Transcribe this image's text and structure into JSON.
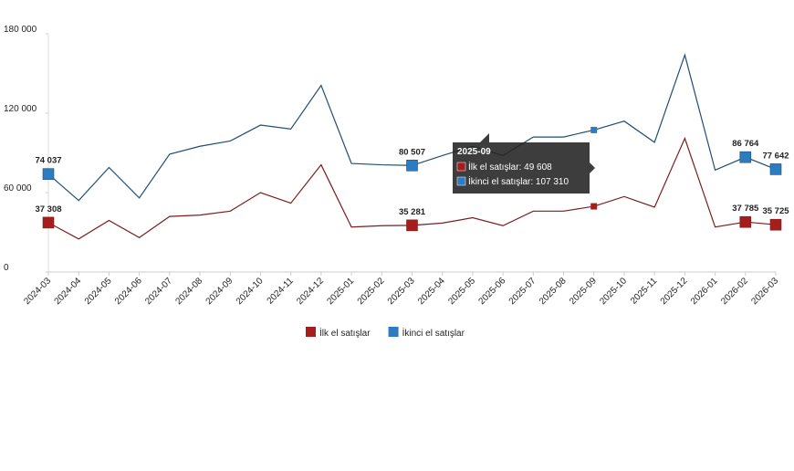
{
  "chart_data": {
    "type": "line",
    "categories": [
      "2024-03",
      "2024-04",
      "2024-05",
      "2024-06",
      "2024-07",
      "2024-08",
      "2024-09",
      "2024-10",
      "2024-11",
      "2024-12",
      "2025-01",
      "2025-02",
      "2025-03",
      "2025-04",
      "2025-05",
      "2025-06",
      "2025-07",
      "2025-08",
      "2025-09",
      "2025-10",
      "2025-11",
      "2025-12",
      "2026-01",
      "2026-02",
      "2026-03"
    ],
    "series": [
      {
        "name": "İlk el satışlar",
        "color": "#a51d1d",
        "line_color": "#7a1e1e",
        "values": [
          37308,
          25000,
          39000,
          26000,
          42000,
          43000,
          46000,
          60000,
          52000,
          81000,
          34000,
          35000,
          35281,
          37000,
          41000,
          35000,
          46000,
          46000,
          49608,
          57000,
          49000,
          101000,
          34000,
          37785,
          35725
        ],
        "value_labels": [
          "37 308",
          null,
          null,
          null,
          null,
          null,
          null,
          null,
          null,
          null,
          null,
          null,
          "35 281",
          null,
          null,
          null,
          null,
          null,
          null,
          null,
          null,
          null,
          null,
          "37 785",
          "35 725"
        ]
      },
      {
        "name": "İkinci el satışlar",
        "color": "#2d7bc0",
        "line_color": "#1f4f73",
        "values": [
          74037,
          54000,
          79000,
          56000,
          89000,
          95000,
          99000,
          111000,
          108000,
          141000,
          82000,
          81000,
          80507,
          88000,
          95000,
          88000,
          102000,
          102000,
          107310,
          114000,
          98000,
          164000,
          77000,
          86764,
          77642
        ],
        "value_labels": [
          "74 037",
          null,
          null,
          null,
          null,
          null,
          null,
          null,
          null,
          null,
          null,
          null,
          "80 507",
          null,
          null,
          null,
          null,
          null,
          null,
          null,
          null,
          null,
          null,
          "86 764",
          "77 642"
        ]
      }
    ],
    "ylim": [
      0,
      180000
    ],
    "yticks": [
      {
        "value": 0,
        "label": "0"
      },
      {
        "value": 60000,
        "label": "60 000"
      },
      {
        "value": 120000,
        "label": "120 000"
      },
      {
        "value": 180000,
        "label": "180 000"
      }
    ],
    "legend": "bottom",
    "tooltip": {
      "title": "2025-09",
      "lines": [
        "İlk el satışlar: 49 608",
        "İkinci el satışlar: 107 310"
      ]
    }
  }
}
